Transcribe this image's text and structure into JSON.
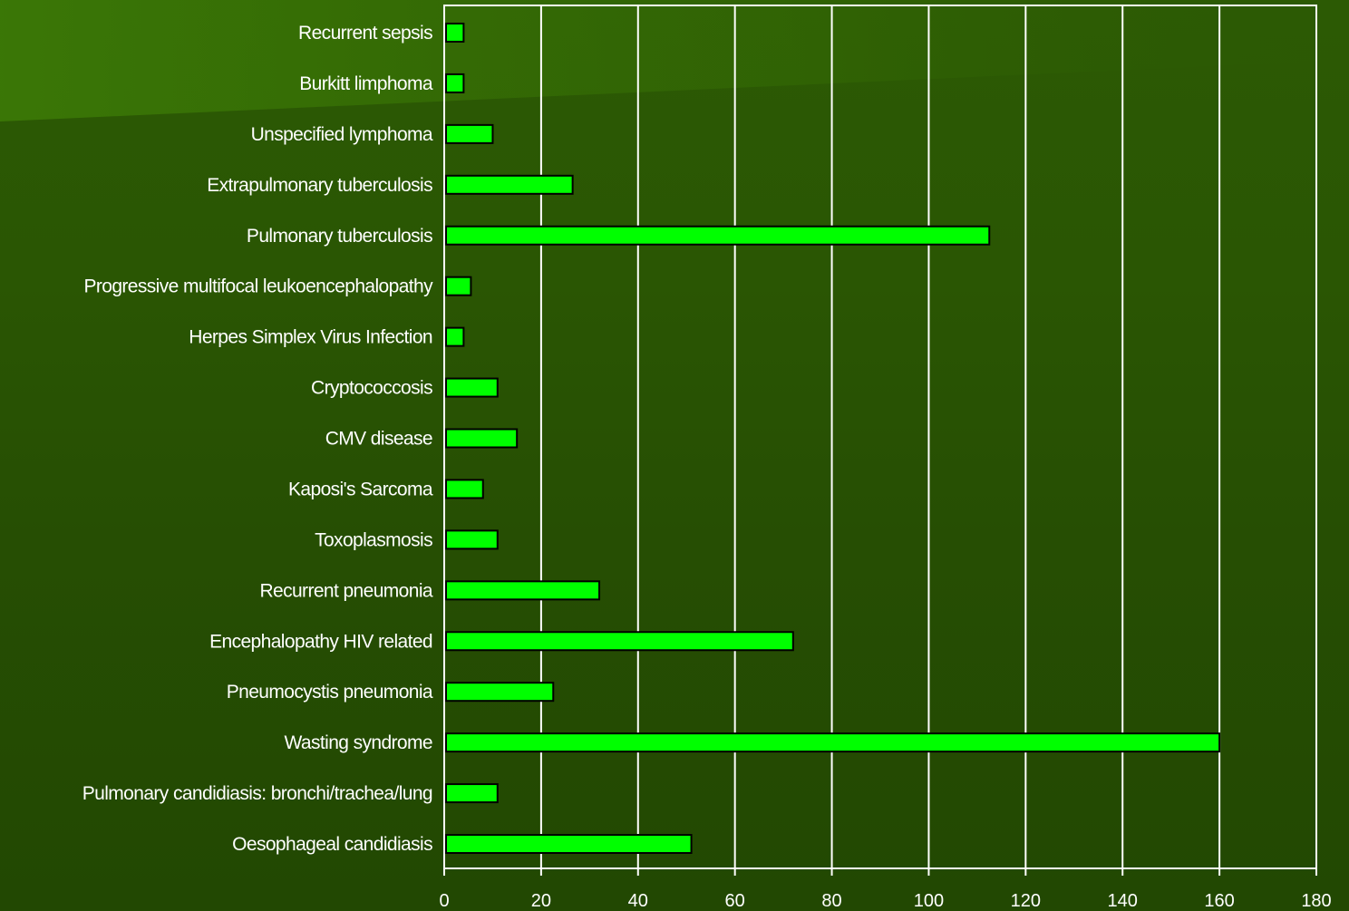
{
  "chart_data": {
    "type": "bar",
    "orientation": "horizontal",
    "categories": [
      "Recurrent sepsis",
      "Burkitt limphoma",
      "Unspecified lymphoma",
      "Extrapulmonary tuberculosis",
      "Pulmonary tuberculosis",
      "Progressive multifocal leukoencephalopathy",
      "Herpes Simplex Virus Infection",
      "Cryptococcosis",
      "CMV disease",
      "Kaposi's Sarcoma",
      "Toxoplasmosis",
      "Recurrent pneumonia",
      "Encephalopathy HIV related",
      "Pneumocystis pneumonia",
      "Wasting syndrome",
      "Pulmonary candidiasis: bronchi/trachea/lung",
      "Oesophageal candidiasis"
    ],
    "values": [
      4,
      4,
      10,
      26.5,
      112.5,
      5.5,
      4,
      11,
      15,
      8,
      11,
      32,
      72,
      22.5,
      160,
      11,
      51
    ],
    "xlim": [
      0,
      180
    ],
    "xticks": [
      "0",
      "20",
      "40",
      "60",
      "80",
      "100",
      "120",
      "140",
      "160",
      "180"
    ],
    "grid": true,
    "title": "",
    "xlabel": "",
    "ylabel": "",
    "colors": {
      "bar_fill": "#00ff00",
      "bar_stroke": "#000000",
      "grid": "#ffffff",
      "text": "#ffffff"
    }
  }
}
